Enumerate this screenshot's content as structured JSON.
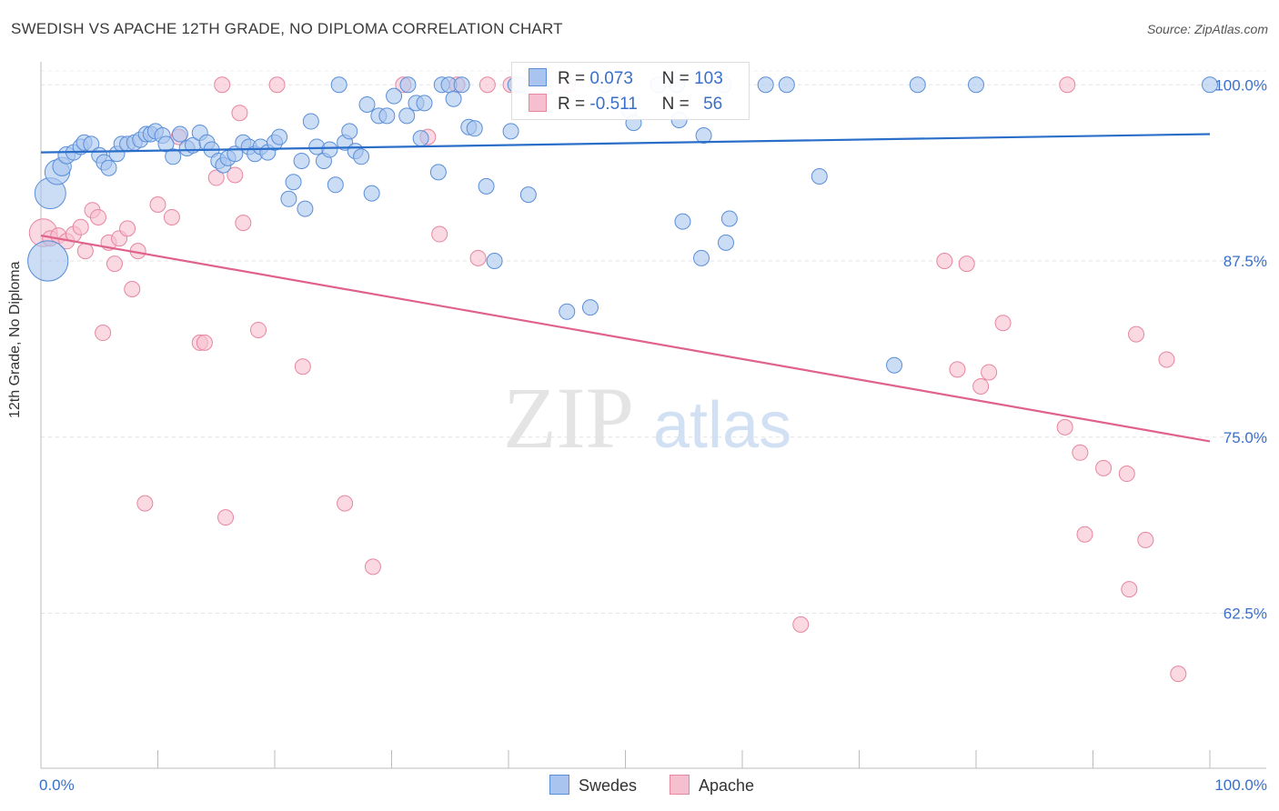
{
  "title": "SWEDISH VS APACHE 12TH GRADE, NO DIPLOMA CORRELATION CHART",
  "source": "Source: ZipAtlas.com",
  "watermark": {
    "zip": "ZIP",
    "atlas": "atlas"
  },
  "colors": {
    "swedes_fill": "#a9c5ef",
    "swedes_stroke": "#5a8fd8",
    "swedes_line": "#2a6ec9",
    "apache_fill": "#f6bfd0",
    "apache_stroke": "#e7869f",
    "apache_line": "#e0628c",
    "tick_label": "#3a6fc9",
    "grid": "#e3e3e3"
  },
  "legend": {
    "swedes": {
      "r_label": "R =",
      "r_value": "0.073",
      "n_label": "N =",
      "n_value": "103"
    },
    "apache": {
      "r_label": "R =",
      "r_value": "-0.511",
      "n_label": "N =",
      "n_value": "56"
    }
  },
  "bottom_legend": {
    "swedes": "Swedes",
    "apache": "Apache"
  },
  "chart_data": {
    "type": "scatter",
    "title": "SWEDISH VS APACHE 12TH GRADE, NO DIPLOMA CORRELATION CHART",
    "xlabel": "",
    "ylabel": "12th Grade, No Diploma",
    "xlim": [
      0,
      100
    ],
    "ylim": [
      51.5,
      101.5
    ],
    "x_tick_labels": [
      "0.0%",
      "100.0%"
    ],
    "y_ticks": [
      100,
      87.5,
      75,
      62.5
    ],
    "y_tick_labels": [
      "100.0%",
      "87.5%",
      "75.0%",
      "62.5%"
    ],
    "grid": "horizontal dashed",
    "series": [
      {
        "name": "Swedes",
        "trend": {
          "x": [
            0,
            100
          ],
          "y": [
            95.2,
            96.5
          ]
        },
        "points": [
          [
            0.6,
            87.5,
            2.6
          ],
          [
            0.8,
            92.3,
            2
          ],
          [
            1.4,
            93.8,
            1.6
          ],
          [
            1.8,
            94.2,
            1.2
          ],
          [
            2.2,
            95.0,
            1.1
          ],
          [
            2.8,
            95.2,
            1
          ],
          [
            3.4,
            95.6,
            1
          ],
          [
            3.7,
            95.9,
            1
          ],
          [
            4.3,
            95.8,
            1
          ],
          [
            5.0,
            95.0,
            1
          ],
          [
            5.4,
            94.5,
            1
          ],
          [
            5.8,
            94.1,
            1
          ],
          [
            6.5,
            95.1,
            1
          ],
          [
            6.9,
            95.8,
            1
          ],
          [
            7.4,
            95.8,
            1
          ],
          [
            8.0,
            95.9,
            1
          ],
          [
            8.5,
            96.1,
            1
          ],
          [
            9.0,
            96.5,
            1
          ],
          [
            9.4,
            96.5,
            1
          ],
          [
            9.8,
            96.7,
            1
          ],
          [
            10.4,
            96.4,
            1
          ],
          [
            10.7,
            95.8,
            1
          ],
          [
            11.3,
            94.9,
            1
          ],
          [
            11.9,
            96.5,
            1
          ],
          [
            12.5,
            95.5,
            1
          ],
          [
            13.0,
            95.7,
            1
          ],
          [
            13.6,
            96.6,
            1
          ],
          [
            14.2,
            95.9,
            1
          ],
          [
            14.6,
            95.4,
            1
          ],
          [
            15.2,
            94.6,
            1
          ],
          [
            15.6,
            94.3,
            1
          ],
          [
            16.0,
            94.8,
            1
          ],
          [
            16.6,
            95.1,
            1
          ],
          [
            17.3,
            95.9,
            1
          ],
          [
            17.8,
            95.6,
            1
          ],
          [
            18.3,
            95.1,
            1
          ],
          [
            18.8,
            95.6,
            1
          ],
          [
            19.4,
            95.2,
            1
          ],
          [
            20.0,
            95.9,
            1
          ],
          [
            20.4,
            96.3,
            1
          ],
          [
            21.2,
            91.9,
            1
          ],
          [
            21.6,
            93.1,
            1
          ],
          [
            22.3,
            94.6,
            1
          ],
          [
            22.6,
            91.2,
            1
          ],
          [
            23.1,
            97.4,
            1
          ],
          [
            23.6,
            95.6,
            1
          ],
          [
            24.2,
            94.6,
            1
          ],
          [
            24.7,
            95.4,
            1
          ],
          [
            25.2,
            92.9,
            1
          ],
          [
            25.5,
            100,
            1
          ],
          [
            26.0,
            95.9,
            1
          ],
          [
            26.4,
            96.7,
            1
          ],
          [
            26.9,
            95.3,
            1
          ],
          [
            27.4,
            94.9,
            1
          ],
          [
            27.9,
            98.6,
            1
          ],
          [
            28.3,
            92.3,
            1
          ],
          [
            28.9,
            97.8,
            1
          ],
          [
            29.6,
            97.8,
            1
          ],
          [
            30.2,
            99.2,
            1
          ],
          [
            31.3,
            97.8,
            1
          ],
          [
            31.4,
            100,
            1
          ],
          [
            32.1,
            98.7,
            1
          ],
          [
            32.5,
            96.2,
            1
          ],
          [
            32.8,
            98.7,
            1
          ],
          [
            34.0,
            93.8,
            1
          ],
          [
            34.3,
            100,
            1
          ],
          [
            34.9,
            100,
            1
          ],
          [
            35.3,
            99.0,
            1
          ],
          [
            36.0,
            100,
            1
          ],
          [
            36.6,
            97.0,
            1
          ],
          [
            37.1,
            96.9,
            1
          ],
          [
            38.1,
            92.8,
            1
          ],
          [
            38.8,
            87.5,
            1
          ],
          [
            40.2,
            96.7,
            1
          ],
          [
            40.6,
            100,
            1
          ],
          [
            41.0,
            100,
            1
          ],
          [
            41.7,
            92.2,
            1
          ],
          [
            45.0,
            83.9,
            1
          ],
          [
            47.0,
            84.2,
            1
          ],
          [
            48.3,
            100,
            1
          ],
          [
            50.3,
            98.2,
            1
          ],
          [
            50.7,
            97.3,
            1
          ],
          [
            52.8,
            100,
            1
          ],
          [
            54.4,
            100,
            1
          ],
          [
            54.6,
            97.5,
            1
          ],
          [
            54.9,
            90.3,
            1
          ],
          [
            56.5,
            87.7,
            1
          ],
          [
            56.7,
            96.4,
            1
          ],
          [
            58.4,
            100,
            1
          ],
          [
            58.6,
            88.8,
            1
          ],
          [
            58.9,
            90.5,
            1
          ],
          [
            62.0,
            100,
            1
          ],
          [
            63.8,
            100,
            1
          ],
          [
            66.6,
            93.5,
            1
          ],
          [
            73.0,
            80.1,
            1
          ],
          [
            75.0,
            100,
            1
          ],
          [
            80.0,
            100,
            1
          ],
          [
            100,
            100,
            1
          ]
        ]
      },
      {
        "name": "Apache",
        "trend": {
          "x": [
            0,
            100
          ],
          "y": [
            89.3,
            74.7
          ]
        },
        "points": [
          [
            0.2,
            89.5,
            1.8
          ],
          [
            0.8,
            89.1,
            1
          ],
          [
            1.5,
            89.3,
            1
          ],
          [
            2.2,
            88.9,
            1
          ],
          [
            2.8,
            89.4,
            1
          ],
          [
            3.4,
            89.9,
            1
          ],
          [
            3.8,
            88.2,
            1
          ],
          [
            4.4,
            91.1,
            1
          ],
          [
            4.9,
            90.6,
            1
          ],
          [
            5.3,
            82.4,
            1
          ],
          [
            5.8,
            88.8,
            1
          ],
          [
            6.3,
            87.3,
            1
          ],
          [
            6.7,
            89.1,
            1
          ],
          [
            7.4,
            89.8,
            1
          ],
          [
            7.8,
            85.5,
            1
          ],
          [
            8.3,
            88.2,
            1
          ],
          [
            8.9,
            70.3,
            1
          ],
          [
            10.0,
            91.5,
            1
          ],
          [
            11.2,
            90.6,
            1
          ],
          [
            11.8,
            96.3,
            1
          ],
          [
            13.6,
            81.7,
            1
          ],
          [
            14.0,
            81.7,
            1
          ],
          [
            15.0,
            93.4,
            1
          ],
          [
            15.5,
            100,
            1
          ],
          [
            15.8,
            69.3,
            1
          ],
          [
            16.6,
            93.6,
            1
          ],
          [
            17.0,
            98.0,
            1
          ],
          [
            17.3,
            90.2,
            1
          ],
          [
            18.6,
            82.6,
            1
          ],
          [
            20.2,
            100,
            1
          ],
          [
            22.4,
            80.0,
            1
          ],
          [
            26.0,
            70.3,
            1
          ],
          [
            28.4,
            65.8,
            1
          ],
          [
            31.0,
            100,
            1
          ],
          [
            33.1,
            96.3,
            1
          ],
          [
            34.1,
            89.4,
            1
          ],
          [
            35.6,
            100,
            1
          ],
          [
            37.4,
            87.7,
            1
          ],
          [
            38.2,
            100,
            1
          ],
          [
            40.2,
            100,
            1
          ],
          [
            45.1,
            100,
            1
          ],
          [
            65.0,
            61.7,
            1
          ],
          [
            77.3,
            87.5,
            1
          ],
          [
            78.4,
            79.8,
            1
          ],
          [
            79.2,
            87.3,
            1
          ],
          [
            80.4,
            78.6,
            1
          ],
          [
            81.1,
            79.6,
            1
          ],
          [
            82.3,
            83.1,
            1
          ],
          [
            87.8,
            100,
            1
          ],
          [
            87.6,
            75.7,
            1
          ],
          [
            88.9,
            73.9,
            1
          ],
          [
            89.3,
            68.1,
            1
          ],
          [
            90.9,
            72.8,
            1
          ],
          [
            92.9,
            72.4,
            1
          ],
          [
            93.1,
            64.2,
            1
          ],
          [
            93.7,
            82.3,
            1
          ],
          [
            94.5,
            67.7,
            1
          ],
          [
            96.3,
            80.5,
            1
          ],
          [
            97.3,
            58.2,
            1
          ]
        ]
      }
    ]
  }
}
